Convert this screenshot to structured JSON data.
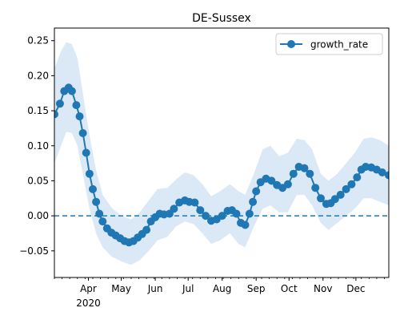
{
  "chart_data": {
    "type": "line",
    "title": "DE-Sussex",
    "xlabel": "",
    "ylabel": "",
    "xlim": [
      "2020-03-01",
      "2020-12-31"
    ],
    "ylim": [
      -0.088,
      0.268
    ],
    "yticks": [
      -0.05,
      0.0,
      0.05,
      0.1,
      0.15,
      0.2,
      0.25
    ],
    "ytick_labels": [
      "−0.05",
      "0.00",
      "0.05",
      "0.10",
      "0.15",
      "0.20",
      "0.25"
    ],
    "xticks": [
      {
        "date": "2020-04-01",
        "label": "Apr",
        "sublabel": "2020"
      },
      {
        "date": "2020-05-01",
        "label": "May"
      },
      {
        "date": "2020-06-01",
        "label": "Jun"
      },
      {
        "date": "2020-07-01",
        "label": "Jul"
      },
      {
        "date": "2020-08-01",
        "label": "Aug"
      },
      {
        "date": "2020-09-01",
        "label": "Sep"
      },
      {
        "date": "2020-10-01",
        "label": "Oct"
      },
      {
        "date": "2020-11-01",
        "label": "Nov"
      },
      {
        "date": "2020-12-01",
        "label": "Dec"
      }
    ],
    "legend": {
      "position": "top-right",
      "entries": [
        "growth_rate"
      ]
    },
    "reference_line": {
      "y": 0.0,
      "style": "dashed"
    },
    "colors": {
      "line": "#1f77b4",
      "band": "#dbe8f5"
    },
    "series": [
      {
        "name": "growth_rate",
        "style": "line-with-markers",
        "points": [
          [
            "2020-03-01",
            0.145
          ],
          [
            "2020-03-06",
            0.16
          ],
          [
            "2020-03-10",
            0.178
          ],
          [
            "2020-03-14",
            0.183
          ],
          [
            "2020-03-17",
            0.178
          ],
          [
            "2020-03-21",
            0.158
          ],
          [
            "2020-03-24",
            0.142
          ],
          [
            "2020-03-27",
            0.118
          ],
          [
            "2020-03-30",
            0.09
          ],
          [
            "2020-04-02",
            0.06
          ],
          [
            "2020-04-05",
            0.038
          ],
          [
            "2020-04-08",
            0.02
          ],
          [
            "2020-04-11",
            0.003
          ],
          [
            "2020-04-14",
            -0.008
          ],
          [
            "2020-04-18",
            -0.018
          ],
          [
            "2020-04-22",
            -0.024
          ],
          [
            "2020-04-26",
            -0.028
          ],
          [
            "2020-04-30",
            -0.032
          ],
          [
            "2020-05-04",
            -0.036
          ],
          [
            "2020-05-08",
            -0.038
          ],
          [
            "2020-05-12",
            -0.036
          ],
          [
            "2020-05-16",
            -0.031
          ],
          [
            "2020-05-20",
            -0.026
          ],
          [
            "2020-05-24",
            -0.02
          ],
          [
            "2020-05-28",
            -0.008
          ],
          [
            "2020-06-01",
            -0.002
          ],
          [
            "2020-06-05",
            0.003
          ],
          [
            "2020-06-09",
            0.002
          ],
          [
            "2020-06-14",
            0.003
          ],
          [
            "2020-06-18",
            0.01
          ],
          [
            "2020-06-23",
            0.019
          ],
          [
            "2020-06-28",
            0.022
          ],
          [
            "2020-07-02",
            0.02
          ],
          [
            "2020-07-07",
            0.019
          ],
          [
            "2020-07-12",
            0.008
          ],
          [
            "2020-07-17",
            0.0
          ],
          [
            "2020-07-22",
            -0.007
          ],
          [
            "2020-07-27",
            -0.005
          ],
          [
            "2020-08-01",
            0.0
          ],
          [
            "2020-08-06",
            0.007
          ],
          [
            "2020-08-10",
            0.008
          ],
          [
            "2020-08-14",
            0.003
          ],
          [
            "2020-08-18",
            -0.01
          ],
          [
            "2020-08-22",
            -0.013
          ],
          [
            "2020-08-26",
            0.003
          ],
          [
            "2020-08-29",
            0.02
          ],
          [
            "2020-09-01",
            0.035
          ],
          [
            "2020-09-05",
            0.048
          ],
          [
            "2020-09-10",
            0.053
          ],
          [
            "2020-09-15",
            0.05
          ],
          [
            "2020-09-20",
            0.044
          ],
          [
            "2020-09-25",
            0.04
          ],
          [
            "2020-09-30",
            0.045
          ],
          [
            "2020-10-05",
            0.06
          ],
          [
            "2020-10-10",
            0.07
          ],
          [
            "2020-10-15",
            0.068
          ],
          [
            "2020-10-20",
            0.06
          ],
          [
            "2020-10-25",
            0.04
          ],
          [
            "2020-10-30",
            0.025
          ],
          [
            "2020-11-04",
            0.017
          ],
          [
            "2020-11-08",
            0.018
          ],
          [
            "2020-11-12",
            0.024
          ],
          [
            "2020-11-17",
            0.03
          ],
          [
            "2020-11-22",
            0.038
          ],
          [
            "2020-11-27",
            0.045
          ],
          [
            "2020-12-02",
            0.055
          ],
          [
            "2020-12-06",
            0.066
          ],
          [
            "2020-12-10",
            0.07
          ],
          [
            "2020-12-15",
            0.069
          ],
          [
            "2020-12-20",
            0.066
          ],
          [
            "2020-12-25",
            0.062
          ],
          [
            "2020-12-31",
            0.058
          ]
        ],
        "band": [
          [
            "2020-03-01",
            0.075,
            0.21
          ],
          [
            "2020-03-07",
            0.1,
            0.235
          ],
          [
            "2020-03-12",
            0.12,
            0.248
          ],
          [
            "2020-03-17",
            0.118,
            0.245
          ],
          [
            "2020-03-22",
            0.1,
            0.225
          ],
          [
            "2020-03-27",
            0.06,
            0.175
          ],
          [
            "2020-04-02",
            0.01,
            0.115
          ],
          [
            "2020-04-08",
            -0.025,
            0.065
          ],
          [
            "2020-04-14",
            -0.045,
            0.03
          ],
          [
            "2020-04-22",
            -0.058,
            0.012
          ],
          [
            "2020-05-01",
            -0.065,
            0.0
          ],
          [
            "2020-05-10",
            -0.07,
            -0.005
          ],
          [
            "2020-05-18",
            -0.063,
            0.005
          ],
          [
            "2020-05-26",
            -0.05,
            0.022
          ],
          [
            "2020-06-03",
            -0.035,
            0.038
          ],
          [
            "2020-06-12",
            -0.03,
            0.04
          ],
          [
            "2020-06-20",
            -0.015,
            0.052
          ],
          [
            "2020-06-28",
            -0.008,
            0.062
          ],
          [
            "2020-07-06",
            -0.012,
            0.058
          ],
          [
            "2020-07-14",
            -0.025,
            0.045
          ],
          [
            "2020-07-22",
            -0.04,
            0.028
          ],
          [
            "2020-07-30",
            -0.035,
            0.035
          ],
          [
            "2020-08-08",
            -0.025,
            0.045
          ],
          [
            "2020-08-16",
            -0.04,
            0.035
          ],
          [
            "2020-08-22",
            -0.045,
            0.03
          ],
          [
            "2020-08-30",
            -0.015,
            0.06
          ],
          [
            "2020-09-07",
            0.01,
            0.095
          ],
          [
            "2020-09-14",
            0.015,
            0.1
          ],
          [
            "2020-09-22",
            0.005,
            0.085
          ],
          [
            "2020-09-30",
            0.005,
            0.09
          ],
          [
            "2020-10-08",
            0.03,
            0.11
          ],
          [
            "2020-10-15",
            0.03,
            0.108
          ],
          [
            "2020-10-22",
            0.015,
            0.095
          ],
          [
            "2020-10-30",
            -0.01,
            0.06
          ],
          [
            "2020-11-06",
            -0.02,
            0.05
          ],
          [
            "2020-11-14",
            -0.01,
            0.06
          ],
          [
            "2020-11-22",
            0.0,
            0.075
          ],
          [
            "2020-11-30",
            0.01,
            0.09
          ],
          [
            "2020-12-08",
            0.025,
            0.11
          ],
          [
            "2020-12-15",
            0.025,
            0.112
          ],
          [
            "2020-12-23",
            0.02,
            0.108
          ],
          [
            "2020-12-31",
            0.015,
            0.1
          ]
        ]
      }
    ]
  }
}
